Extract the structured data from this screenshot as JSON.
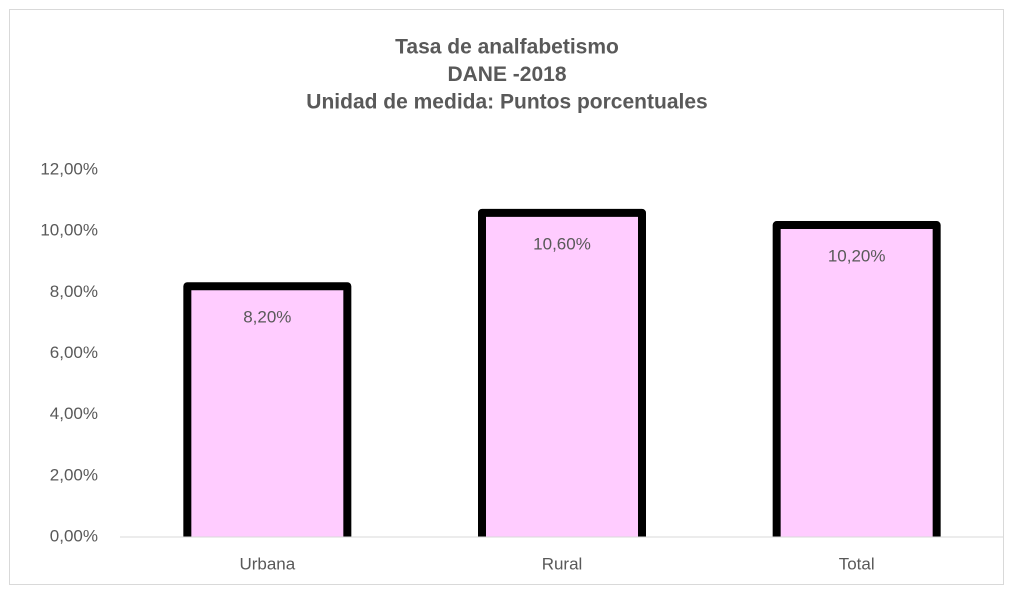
{
  "chart_data": {
    "type": "bar",
    "title": [
      "Tasa de analfabetismo",
      "DANE -2018",
      "Unidad de medida: Puntos porcentuales"
    ],
    "categories": [
      "Urbana",
      "Rural",
      "Total"
    ],
    "values": [
      8.2,
      10.6,
      10.2
    ],
    "value_labels": [
      "8,20%",
      "10,60%",
      "10,20%"
    ],
    "color": "#ffccff",
    "ylim": [
      0,
      12
    ],
    "yticks": [
      {
        "value": 0,
        "label": "0,00%"
      },
      {
        "value": 2,
        "label": "2,00%"
      },
      {
        "value": 4,
        "label": "4,00%"
      },
      {
        "value": 6,
        "label": "6,00%"
      },
      {
        "value": 8,
        "label": "8,00%"
      },
      {
        "value": 10,
        "label": "10,00%"
      },
      {
        "value": 12,
        "label": "12,00%"
      }
    ],
    "grid": false
  }
}
